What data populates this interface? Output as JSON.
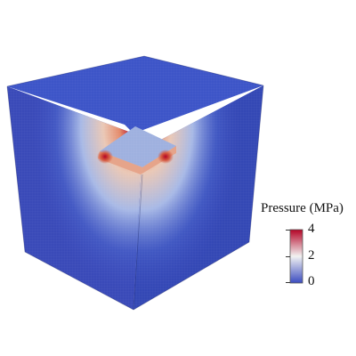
{
  "legend": {
    "title": "Pressure (MPa)",
    "ticks": [
      {
        "value": 4,
        "label": "4"
      },
      {
        "value": 2,
        "label": "2"
      },
      {
        "value": 0,
        "label": "0"
      }
    ],
    "min": 0,
    "max": 4,
    "colors": {
      "low": "#3b4cc0",
      "mid": "#f2f2f2",
      "high": "#b40426"
    }
  },
  "colors": {
    "cube_base": "#3b4cc0",
    "cube_top": "#3d55c8",
    "cube_left": "#3a4ab8",
    "cube_right": "#3448b5",
    "hotspot": "#c0392b"
  }
}
